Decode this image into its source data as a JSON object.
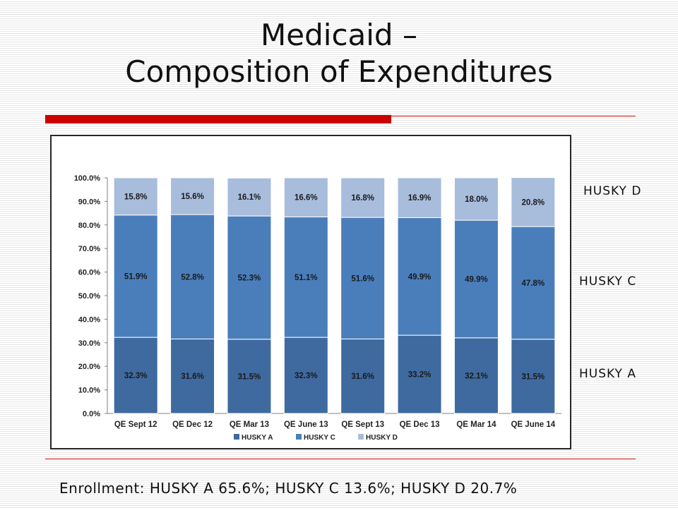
{
  "slide": {
    "title_line1": "Medicaid –",
    "title_line2": "Composition of Expenditures",
    "side_labels": {
      "husky_d": "HUSKY D",
      "husky_c": "HUSKY C",
      "husky_a": "HUSKY A"
    },
    "footer": "Enrollment: HUSKY A 65.6%; HUSKY C 13.6%; HUSKY D 20.7%"
  },
  "colors": {
    "husky_a": "#3f6aa0",
    "husky_c": "#4a7ebb",
    "husky_d": "#a8bcdc",
    "accent_red": "#cc0000"
  },
  "chart_data": {
    "type": "bar",
    "stacked": true,
    "categories": [
      "QE Sept 12",
      "QE Dec 12",
      "QE Mar 13",
      "QE June 13",
      "QE Sept 13",
      "QE Dec 13",
      "QE Mar 14",
      "QE June 14"
    ],
    "series": [
      {
        "name": "HUSKY A",
        "values": [
          32.3,
          31.6,
          31.5,
          32.3,
          31.6,
          33.2,
          32.1,
          31.5
        ],
        "labels": [
          "32.3%",
          "31.6%",
          "31.5%",
          "32.3%",
          "31.6%",
          "33.2%",
          "32.1%",
          "31.5%"
        ]
      },
      {
        "name": "HUSKY C",
        "values": [
          51.9,
          52.8,
          52.3,
          51.1,
          51.6,
          49.9,
          49.9,
          47.8
        ],
        "labels": [
          "51.9%",
          "52.8%",
          "52.3%",
          "51.1%",
          "51.6%",
          "49.9%",
          "49.9%",
          "47.8%"
        ]
      },
      {
        "name": "HUSKY D",
        "values": [
          15.8,
          15.6,
          16.1,
          16.6,
          16.8,
          16.9,
          18.0,
          20.8
        ],
        "labels": [
          "15.8%",
          "15.6%",
          "16.1%",
          "16.6%",
          "16.8%",
          "16.9%",
          "18.0%",
          "20.8%"
        ]
      }
    ],
    "yticks": [
      "0.0%",
      "10.0%",
      "20.0%",
      "30.0%",
      "40.0%",
      "50.0%",
      "60.0%",
      "70.0%",
      "80.0%",
      "90.0%",
      "100.0%"
    ],
    "ylim": [
      0,
      100
    ],
    "legend": [
      "HUSKY A",
      "HUSKY C",
      "HUSKY D"
    ],
    "legend_position": "bottom",
    "grid": false
  }
}
